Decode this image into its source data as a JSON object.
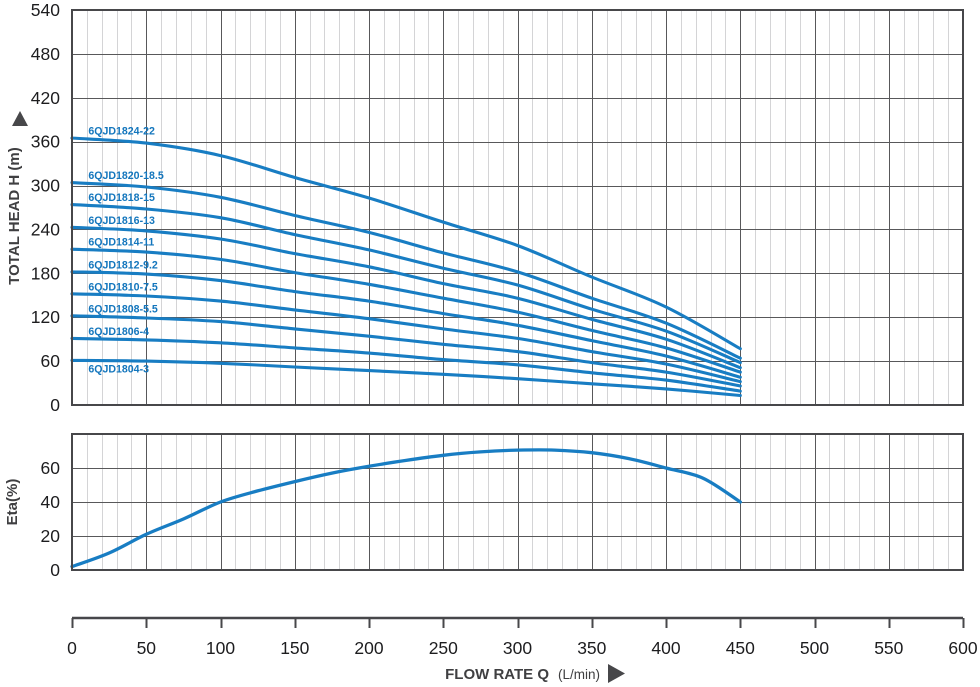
{
  "colors": {
    "curve_blue": "#187dc3",
    "curve_label_blue": "#1376bd",
    "grid_major": "#58585a",
    "grid_minor": "#d4d4d6",
    "plot_border": "#47474a",
    "tick_text": "#1d1d1f",
    "axis_title_text": "#3f3f41"
  },
  "y_axis_top": {
    "title": "TOTAL HEAD H (m)",
    "ticks": [
      0,
      60,
      120,
      180,
      240,
      300,
      360,
      420,
      480,
      540
    ]
  },
  "y_axis_bottom": {
    "title": "Eta(%)",
    "ticks": [
      0,
      20,
      40,
      60
    ]
  },
  "x_axis": {
    "title": "FLOW RATE Q",
    "unit": "(L/min)",
    "ticks": [
      0,
      50,
      100,
      150,
      200,
      250,
      300,
      350,
      400,
      450,
      500,
      550,
      600
    ]
  },
  "chart_data": [
    {
      "type": "line",
      "title": "Pump head curves",
      "ylabel": "TOTAL HEAD H (m)",
      "xlabel": "FLOW RATE Q (L/min)",
      "xlim": [
        0,
        600
      ],
      "ylim": [
        0,
        540
      ],
      "yticks": [
        0,
        60,
        120,
        180,
        240,
        300,
        360,
        420,
        480,
        540
      ],
      "x_major_step": 50,
      "x_minor_step": 10,
      "grid": true,
      "legend": "inline-curve-labels",
      "x": [
        0,
        50,
        100,
        150,
        200,
        250,
        300,
        350,
        400,
        450
      ],
      "series": [
        {
          "name": "6QJD1824-22",
          "label_side": "above",
          "values": [
            365,
            358,
            341,
            311,
            283,
            250,
            218,
            175,
            134,
            77
          ]
        },
        {
          "name": "6QJD1820-18.5",
          "label_side": "above",
          "values": [
            304,
            298,
            284,
            259,
            236,
            208,
            182,
            146,
            112,
            64
          ]
        },
        {
          "name": "6QJD1818-15",
          "label_side": "above",
          "values": [
            274,
            268,
            256,
            233,
            212,
            187,
            164,
            131,
            101,
            58
          ]
        },
        {
          "name": "6QJD1816-13",
          "label_side": "above",
          "values": [
            243,
            238,
            227,
            207,
            189,
            166,
            146,
            117,
            90,
            51
          ]
        },
        {
          "name": "6QJD1814-11",
          "label_side": "above",
          "values": [
            213,
            209,
            199,
            181,
            165,
            146,
            127,
            102,
            78,
            45
          ]
        },
        {
          "name": "6QJD1812-9.2",
          "label_side": "above",
          "values": [
            182,
            179,
            170,
            155,
            142,
            125,
            109,
            88,
            67,
            38
          ]
        },
        {
          "name": "6QJD1810-7.5",
          "label_side": "above",
          "values": [
            152,
            149,
            142,
            130,
            118,
            104,
            91,
            73,
            56,
            32
          ]
        },
        {
          "name": "6QJD1808-5.5",
          "label_side": "above",
          "values": [
            122,
            119,
            114,
            104,
            94,
            83,
            73,
            58,
            45,
            26
          ]
        },
        {
          "name": "6QJD1806-4",
          "label_side": "above",
          "values": [
            91,
            89,
            85,
            78,
            71,
            62,
            55,
            44,
            34,
            19
          ]
        },
        {
          "name": "6QJD1804-3",
          "label_side": "below",
          "values": [
            61,
            60,
            57,
            52,
            47,
            42,
            36,
            29,
            22,
            13
          ]
        }
      ]
    },
    {
      "type": "line",
      "title": "Pump efficiency curve",
      "ylabel": "Eta(%)",
      "xlabel": "FLOW RATE Q (L/min)",
      "xlim": [
        0,
        600
      ],
      "ylim": [
        0,
        80
      ],
      "yticks": [
        0,
        20,
        40,
        60
      ],
      "x_major_step": 50,
      "x_minor_step": 10,
      "grid": true,
      "x": [
        0,
        25,
        50,
        75,
        100,
        125,
        150,
        175,
        200,
        225,
        250,
        275,
        300,
        325,
        350,
        375,
        400,
        425,
        450
      ],
      "series": [
        {
          "values": [
            2,
            10,
            21,
            30,
            40,
            46.5,
            52,
            57,
            61,
            64.5,
            67.5,
            69.5,
            70.5,
            70.5,
            69,
            65.5,
            60,
            54,
            40
          ]
        }
      ]
    }
  ]
}
